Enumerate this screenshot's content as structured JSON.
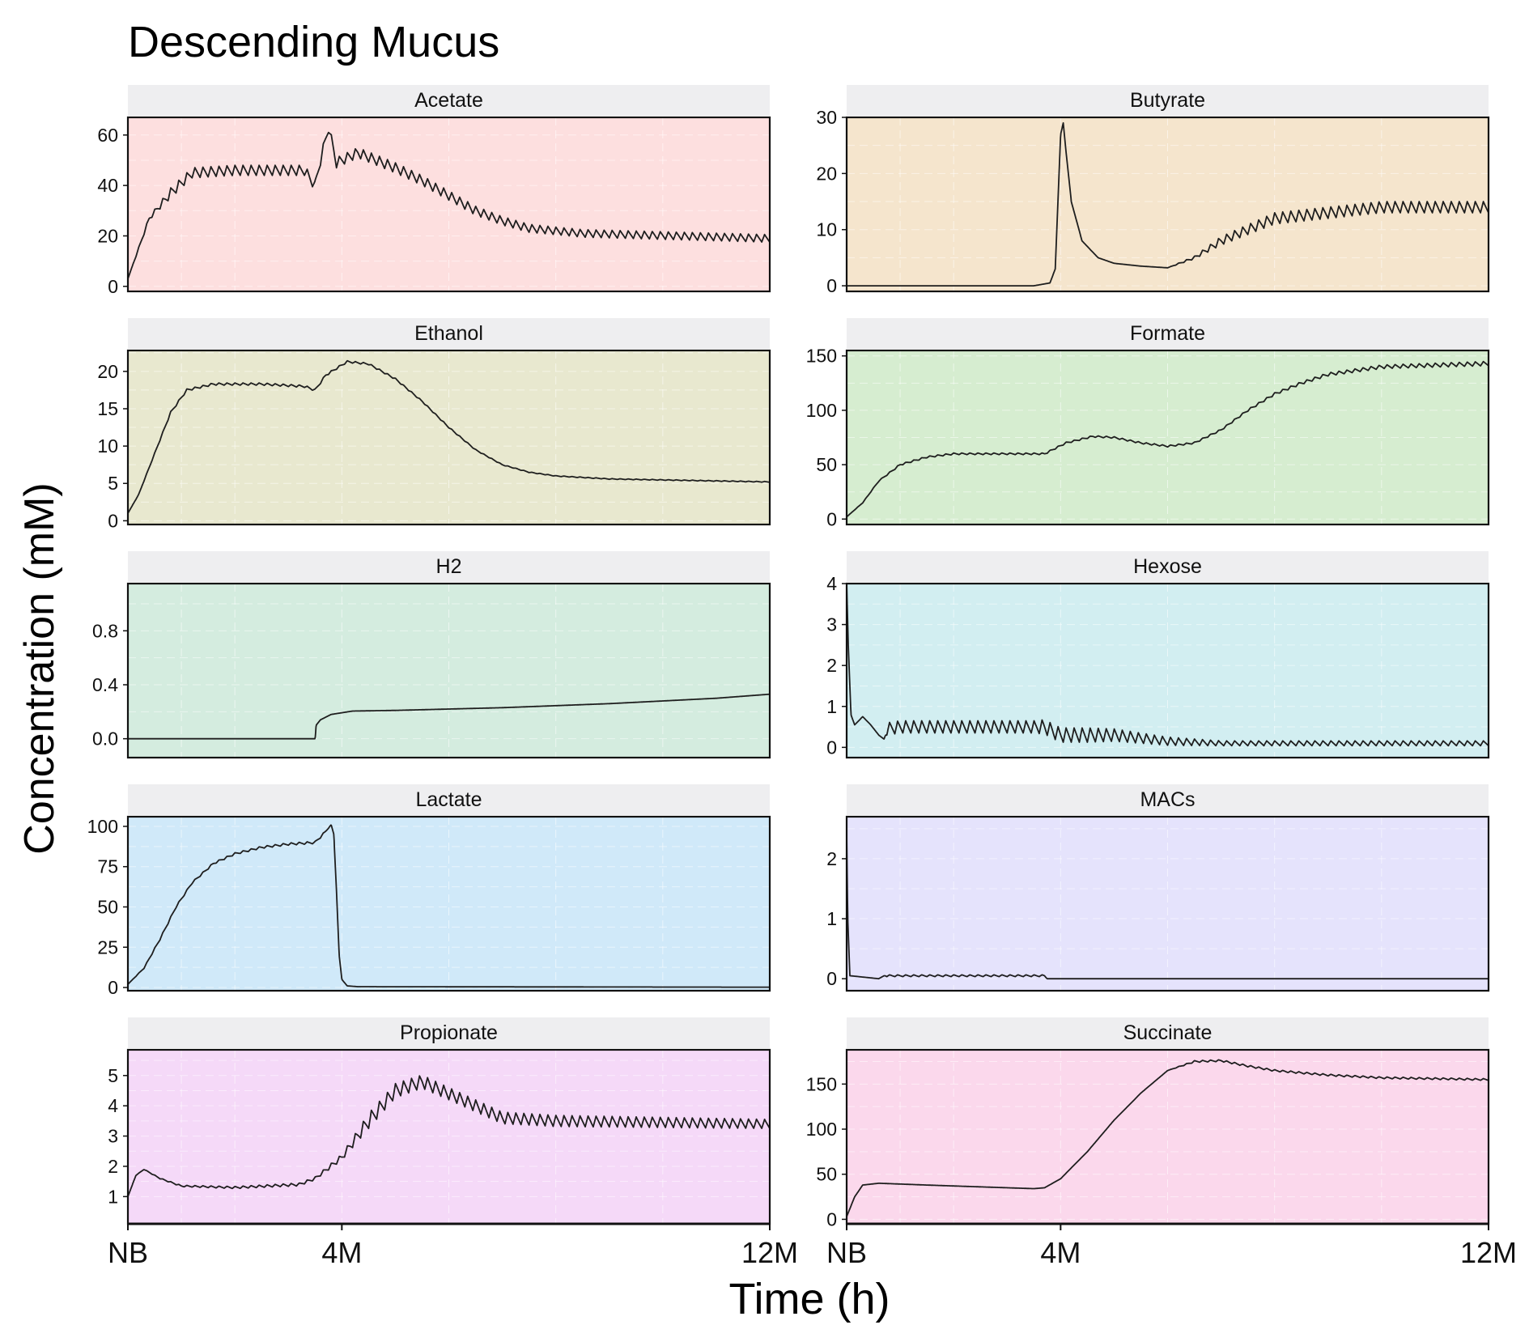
{
  "chart_data": {
    "type": "line",
    "title": "Descending Mucus",
    "xlabel": "Time (h)",
    "ylabel": "Concentration (mM)",
    "x_ticks": [
      "NB",
      "4M",
      "12M"
    ],
    "x_tick_months": [
      0,
      4,
      12
    ],
    "xlim": [
      0,
      12
    ],
    "x_unit": "months",
    "grid": true,
    "legend": "none",
    "series": [
      {
        "name": "Acetate",
        "bg": "#fddfdf",
        "ylim": [
          -2,
          67
        ],
        "yticks": [
          0,
          20,
          40,
          60
        ],
        "tick_labels": [
          "0",
          "20",
          "40",
          "60"
        ],
        "points": [
          [
            0,
            3
          ],
          [
            0.4,
            27
          ],
          [
            0.8,
            37
          ],
          [
            1.2,
            45
          ],
          [
            2,
            46
          ],
          [
            3.3,
            46
          ],
          [
            3.5,
            40
          ],
          [
            3.6,
            50
          ],
          [
            3.75,
            63
          ],
          [
            3.9,
            49
          ],
          [
            4.3,
            53
          ],
          [
            5,
            47
          ],
          [
            5.5,
            42
          ],
          [
            6,
            36
          ],
          [
            6.5,
            30
          ],
          [
            7,
            26
          ],
          [
            7.5,
            23
          ],
          [
            8.5,
            21
          ],
          [
            12,
            19
          ]
        ],
        "osc": [
          [
            0,
            0
          ],
          [
            0.5,
            2
          ],
          [
            0.8,
            4
          ],
          [
            3.5,
            4
          ],
          [
            5,
            4
          ],
          [
            8,
            3
          ],
          [
            12,
            3
          ]
        ],
        "period": 0.15
      },
      {
        "name": "Butyrate",
        "bg": "#f5e5cd",
        "ylim": [
          -1,
          30
        ],
        "yticks": [
          0,
          10,
          20,
          30
        ],
        "tick_labels": [
          "0",
          "10",
          "20",
          "30"
        ],
        "points": [
          [
            0,
            0
          ],
          [
            3.5,
            0
          ],
          [
            3.8,
            0.5
          ],
          [
            3.9,
            3
          ],
          [
            3.95,
            15
          ],
          [
            4,
            27
          ],
          [
            4.05,
            29
          ],
          [
            4.1,
            24
          ],
          [
            4.2,
            15
          ],
          [
            4.4,
            8
          ],
          [
            4.7,
            5
          ],
          [
            5,
            4
          ],
          [
            5.5,
            3.5
          ],
          [
            6,
            3.2
          ],
          [
            6.5,
            5
          ],
          [
            7,
            8
          ],
          [
            7.5,
            10
          ],
          [
            8,
            12
          ],
          [
            9,
            13
          ],
          [
            10,
            14
          ],
          [
            12,
            14
          ]
        ],
        "osc": [
          [
            0,
            0
          ],
          [
            6,
            0
          ],
          [
            6.5,
            0.5
          ],
          [
            7,
            1.5
          ],
          [
            8,
            2
          ],
          [
            12,
            2
          ]
        ],
        "period": 0.15
      },
      {
        "name": "Ethanol",
        "bg": "#e8e8cf",
        "ylim": [
          -0.5,
          22.8
        ],
        "yticks": [
          0,
          5,
          10,
          15,
          20
        ],
        "tick_labels": [
          "0",
          "5",
          "10",
          "15",
          "20"
        ],
        "points": [
          [
            0,
            1
          ],
          [
            0.2,
            3.5
          ],
          [
            0.5,
            9
          ],
          [
            0.8,
            14.5
          ],
          [
            1.1,
            17.5
          ],
          [
            1.6,
            18.3
          ],
          [
            2.5,
            18.3
          ],
          [
            3.3,
            18
          ],
          [
            3.5,
            17.5
          ],
          [
            3.7,
            19.5
          ],
          [
            4.1,
            21.3
          ],
          [
            4.5,
            21
          ],
          [
            5,
            19
          ],
          [
            5.5,
            16
          ],
          [
            6,
            12.5
          ],
          [
            6.5,
            9.5
          ],
          [
            7,
            7.5
          ],
          [
            7.5,
            6.5
          ],
          [
            8,
            6
          ],
          [
            9,
            5.6
          ],
          [
            12,
            5.2
          ]
        ],
        "osc": [
          [
            0,
            0
          ],
          [
            1,
            0.3
          ],
          [
            3.5,
            0.3
          ],
          [
            5,
            0.2
          ],
          [
            7,
            0.1
          ],
          [
            12,
            0.1
          ]
        ],
        "period": 0.15
      },
      {
        "name": "Formate",
        "bg": "#d6edd0",
        "ylim": [
          -5,
          155
        ],
        "yticks": [
          0,
          50,
          100,
          150
        ],
        "tick_labels": [
          "0",
          "50",
          "100",
          "150"
        ],
        "points": [
          [
            0,
            2
          ],
          [
            0.3,
            15
          ],
          [
            0.6,
            35
          ],
          [
            1,
            50
          ],
          [
            1.5,
            57
          ],
          [
            2,
            60
          ],
          [
            3,
            60
          ],
          [
            3.7,
            60
          ],
          [
            4.1,
            70
          ],
          [
            4.6,
            76
          ],
          [
            5,
            75
          ],
          [
            5.5,
            70
          ],
          [
            6,
            67
          ],
          [
            6.5,
            70
          ],
          [
            7,
            82
          ],
          [
            7.5,
            100
          ],
          [
            8,
            115
          ],
          [
            8.5,
            125
          ],
          [
            9,
            133
          ],
          [
            10,
            140
          ],
          [
            12,
            143
          ]
        ],
        "osc": [
          [
            0,
            0
          ],
          [
            1,
            1.5
          ],
          [
            7,
            1.5
          ],
          [
            9,
            3
          ],
          [
            12,
            4
          ]
        ],
        "period": 0.15
      },
      {
        "name": "H2",
        "bg": "#d4ecdf",
        "ylim": [
          -0.14,
          1.15
        ],
        "yticks": [
          0.0,
          0.4,
          0.8
        ],
        "tick_labels": [
          "0.0",
          "0.4",
          "0.8"
        ],
        "points": [
          [
            0,
            0
          ],
          [
            3.5,
            0
          ],
          [
            3.52,
            0.1
          ],
          [
            3.6,
            0.14
          ],
          [
            3.8,
            0.18
          ],
          [
            4.2,
            0.205
          ],
          [
            5,
            0.21
          ],
          [
            7,
            0.23
          ],
          [
            9,
            0.26
          ],
          [
            11,
            0.3
          ],
          [
            12,
            0.33
          ]
        ],
        "osc": [
          [
            0,
            0
          ],
          [
            12,
            0
          ]
        ],
        "period": 0.15
      },
      {
        "name": "Hexose",
        "bg": "#d2eef1",
        "ylim": [
          -0.25,
          4.0
        ],
        "yticks": [
          0,
          1,
          2,
          3,
          4
        ],
        "tick_labels": [
          "0",
          "1",
          "2",
          "3",
          "4"
        ],
        "points": [
          [
            0,
            4.0
          ],
          [
            0.03,
            2.5
          ],
          [
            0.08,
            0.8
          ],
          [
            0.15,
            0.55
          ],
          [
            0.3,
            0.75
          ],
          [
            0.45,
            0.55
          ],
          [
            0.6,
            0.3
          ],
          [
            0.7,
            0.2
          ],
          [
            0.75,
            0.45
          ],
          [
            1,
            0.5
          ],
          [
            3.5,
            0.5
          ],
          [
            3.7,
            0.5
          ],
          [
            4,
            0.3
          ],
          [
            5,
            0.3
          ],
          [
            6,
            0.15
          ],
          [
            7,
            0.1
          ],
          [
            12,
            0.1
          ]
        ],
        "osc": [
          [
            0,
            0
          ],
          [
            0.7,
            0
          ],
          [
            0.75,
            0.3
          ],
          [
            3.5,
            0.3
          ],
          [
            3.7,
            0.35
          ],
          [
            4.5,
            0.35
          ],
          [
            6,
            0.2
          ],
          [
            7,
            0.12
          ],
          [
            12,
            0.12
          ]
        ],
        "period": 0.15
      },
      {
        "name": "Lactate",
        "bg": "#d0e9f9",
        "ylim": [
          -2,
          106
        ],
        "yticks": [
          0,
          25,
          50,
          75,
          100
        ],
        "tick_labels": [
          "0",
          "25",
          "50",
          "75",
          "100"
        ],
        "points": [
          [
            0,
            2
          ],
          [
            0.3,
            12
          ],
          [
            0.6,
            30
          ],
          [
            0.9,
            50
          ],
          [
            1.2,
            65
          ],
          [
            1.6,
            77
          ],
          [
            2,
            83
          ],
          [
            2.5,
            87
          ],
          [
            3,
            89
          ],
          [
            3.5,
            90
          ],
          [
            3.7,
            97
          ],
          [
            3.8,
            101
          ],
          [
            3.85,
            95
          ],
          [
            3.9,
            60
          ],
          [
            3.95,
            20
          ],
          [
            4,
            5
          ],
          [
            4.1,
            1
          ],
          [
            4.3,
            0.5
          ],
          [
            12,
            0.2
          ]
        ],
        "osc": [
          [
            0,
            0
          ],
          [
            0.5,
            1
          ],
          [
            3.6,
            1.5
          ],
          [
            3.8,
            0
          ],
          [
            12,
            0
          ]
        ],
        "period": 0.15
      },
      {
        "name": "MACs",
        "bg": "#e5e3fc",
        "ylim": [
          -0.2,
          2.7
        ],
        "yticks": [
          0,
          1,
          2
        ],
        "tick_labels": [
          "0",
          "1",
          "2"
        ],
        "points": [
          [
            0,
            2.4
          ],
          [
            0.02,
            1.0
          ],
          [
            0.06,
            0.05
          ],
          [
            0.6,
            0.0
          ],
          [
            0.7,
            0.05
          ],
          [
            3.7,
            0.05
          ],
          [
            3.75,
            0.0
          ],
          [
            12,
            0.0
          ]
        ],
        "osc": [
          [
            0,
            0
          ],
          [
            0.7,
            0
          ],
          [
            0.75,
            0.03
          ],
          [
            3.7,
            0.03
          ],
          [
            3.75,
            0
          ],
          [
            12,
            0
          ]
        ],
        "period": 0.15
      },
      {
        "name": "Propionate",
        "bg": "#f5d9f8",
        "ylim": [
          0.1,
          5.85
        ],
        "yticks": [
          1,
          2,
          3,
          4,
          5
        ],
        "tick_labels": [
          "1",
          "2",
          "3",
          "4",
          "5"
        ],
        "points": [
          [
            0,
            1
          ],
          [
            0.15,
            1.7
          ],
          [
            0.3,
            1.9
          ],
          [
            0.6,
            1.6
          ],
          [
            1,
            1.35
          ],
          [
            2,
            1.3
          ],
          [
            3.2,
            1.4
          ],
          [
            3.5,
            1.6
          ],
          [
            4,
            2.3
          ],
          [
            4.5,
            3.5
          ],
          [
            5,
            4.5
          ],
          [
            5.5,
            4.8
          ],
          [
            6,
            4.4
          ],
          [
            6.5,
            4
          ],
          [
            7,
            3.6
          ],
          [
            8,
            3.5
          ],
          [
            12,
            3.4
          ]
        ],
        "osc": [
          [
            0,
            0
          ],
          [
            1,
            0.05
          ],
          [
            3.5,
            0.1
          ],
          [
            4,
            0.2
          ],
          [
            4.5,
            0.5
          ],
          [
            6,
            0.4
          ],
          [
            12,
            0.3
          ]
        ],
        "period": 0.15
      },
      {
        "name": "Succinate",
        "bg": "#fbd8ec",
        "ylim": [
          -5,
          188
        ],
        "yticks": [
          0,
          50,
          100,
          150
        ],
        "tick_labels": [
          "0",
          "50",
          "100",
          "150"
        ],
        "points": [
          [
            0,
            3
          ],
          [
            0.15,
            25
          ],
          [
            0.3,
            38
          ],
          [
            0.6,
            40
          ],
          [
            1.5,
            38
          ],
          [
            2.5,
            36
          ],
          [
            3.5,
            34
          ],
          [
            3.7,
            35
          ],
          [
            4,
            45
          ],
          [
            4.5,
            75
          ],
          [
            5,
            110
          ],
          [
            5.5,
            140
          ],
          [
            6,
            165
          ],
          [
            6.5,
            175
          ],
          [
            7,
            176
          ],
          [
            7.5,
            170
          ],
          [
            8,
            165
          ],
          [
            9,
            160
          ],
          [
            10,
            157
          ],
          [
            12,
            155
          ]
        ],
        "osc": [
          [
            0,
            0
          ],
          [
            6,
            0
          ],
          [
            6.5,
            2
          ],
          [
            12,
            2
          ]
        ],
        "period": 0.15
      }
    ]
  }
}
